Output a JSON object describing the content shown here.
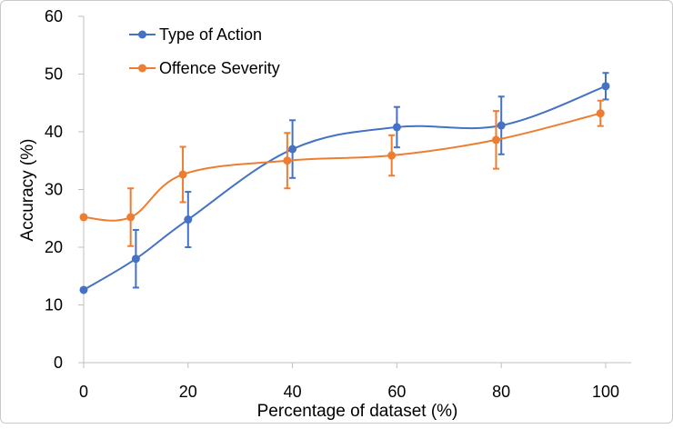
{
  "chart_data": {
    "type": "line",
    "title": "",
    "xlabel": "Percentage of dataset (%)",
    "ylabel": "Accuracy (%)",
    "xlim": [
      0,
      100
    ],
    "ylim": [
      0,
      60
    ],
    "xticks": [
      0,
      20,
      40,
      60,
      80,
      100
    ],
    "yticks": [
      0,
      10,
      20,
      30,
      40,
      50,
      60
    ],
    "gridlines": false,
    "legend_position": "top-left",
    "series": [
      {
        "name": "Type of Action",
        "color": "#4472C4",
        "points": [
          {
            "x": 0,
            "y": 12.6,
            "err": 0
          },
          {
            "x": 10,
            "y": 18,
            "err": 5
          },
          {
            "x": 20,
            "y": 24.8,
            "err": 4.8
          },
          {
            "x": 40,
            "y": 37,
            "err": 5
          },
          {
            "x": 60,
            "y": 40.8,
            "err": 3.5
          },
          {
            "x": 80,
            "y": 41.1,
            "err": 5
          },
          {
            "x": 100,
            "y": 47.9,
            "err": 2.3
          }
        ]
      },
      {
        "name": "Offence Severity",
        "color": "#ED7D31",
        "points": [
          {
            "x": 0,
            "y": 25.2,
            "err": 0
          },
          {
            "x": 9,
            "y": 25.2,
            "err": 5
          },
          {
            "x": 19,
            "y": 32.6,
            "err": 4.8
          },
          {
            "x": 39,
            "y": 35,
            "err": 4.8
          },
          {
            "x": 59,
            "y": 35.9,
            "err": 3.5
          },
          {
            "x": 79,
            "y": 38.6,
            "err": 5
          },
          {
            "x": 99,
            "y": 43.2,
            "err": 2.2
          }
        ]
      }
    ]
  }
}
